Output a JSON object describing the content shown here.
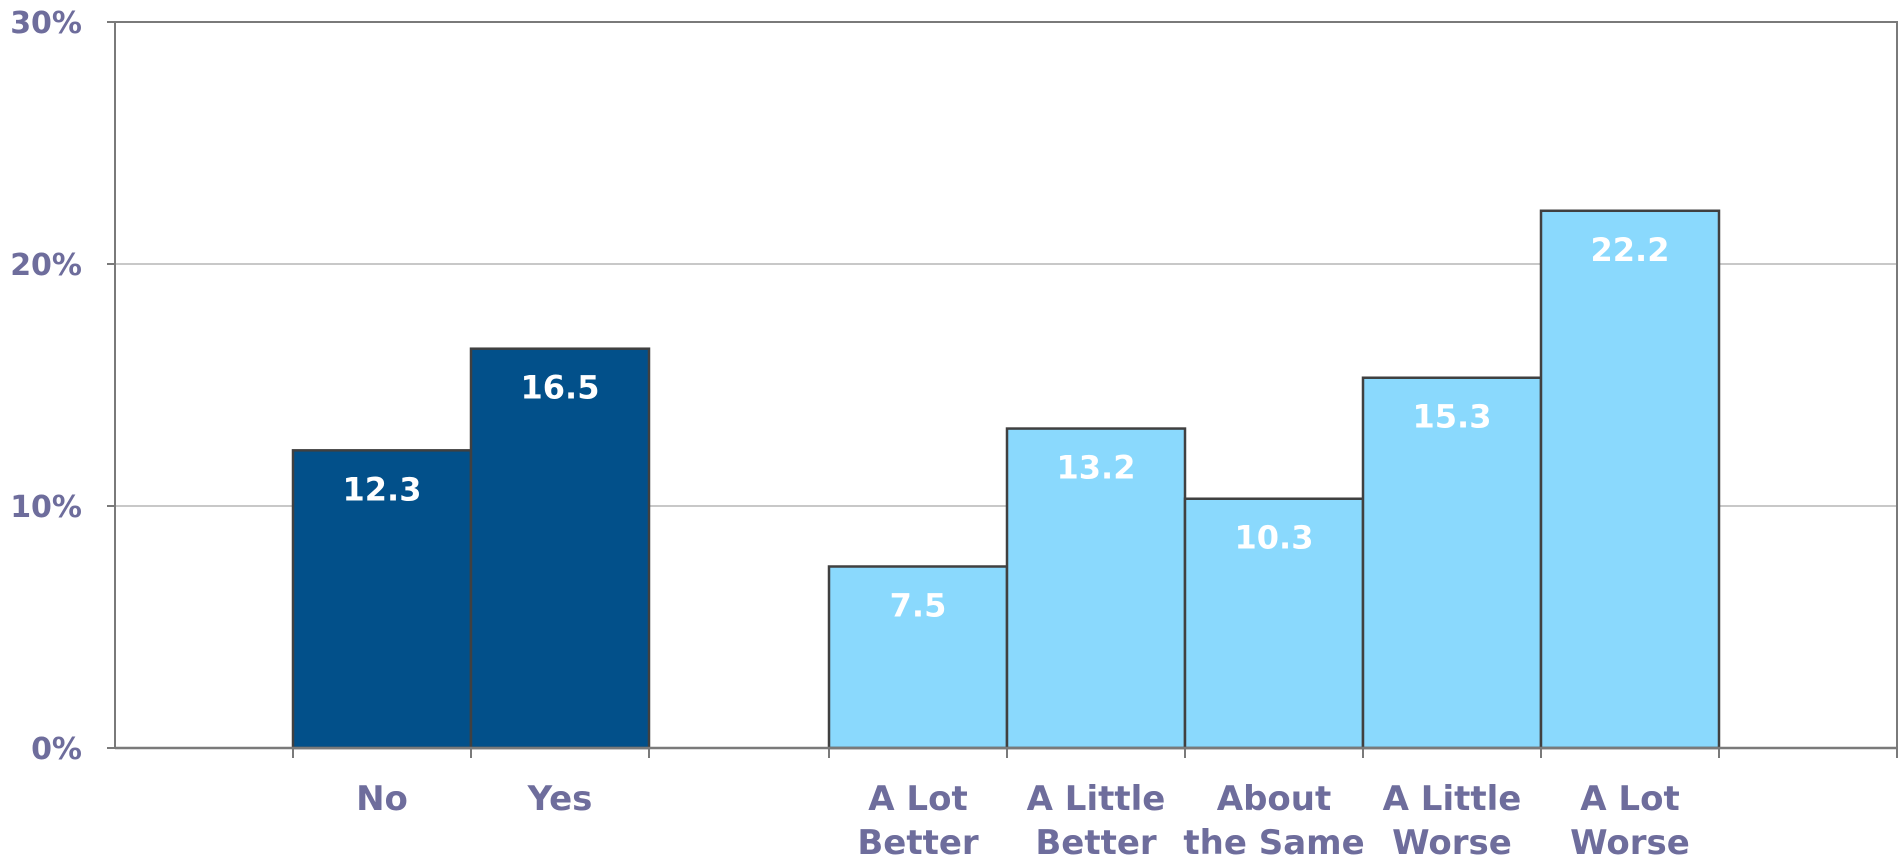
{
  "chart_data": {
    "type": "bar",
    "title": "",
    "xlabel": "",
    "ylabel": "",
    "ylim": [
      0,
      30
    ],
    "yticks": [
      "0%",
      "10%",
      "20%",
      "30%"
    ],
    "ytick_values": [
      0,
      10,
      20,
      30
    ],
    "grid": true,
    "categories": [
      [
        "No"
      ],
      [
        "Yes"
      ],
      [
        "A Lot",
        "Better"
      ],
      [
        "A Little",
        "Better"
      ],
      [
        "About",
        "the Same"
      ],
      [
        "A Little",
        "Worse"
      ],
      [
        "A Lot",
        "Worse"
      ]
    ],
    "values": [
      12.3,
      16.5,
      7.5,
      13.2,
      10.3,
      15.3,
      22.2
    ],
    "data_labels": [
      "12.3",
      "16.5",
      "7.5",
      "13.2",
      "10.3",
      "15.3",
      "22.2"
    ],
    "groups": [
      {
        "members": [
          0,
          1
        ],
        "color": "#02508a"
      },
      {
        "members": [
          2,
          3,
          4,
          5,
          6
        ],
        "color": "#8ad9fd"
      }
    ],
    "colors": {
      "axis_label": "#6e6d9c",
      "data_label": "#ffffff",
      "bar_border": "#404040",
      "gridline": "#b5b5b5",
      "frame": "#7a7a7a"
    }
  }
}
